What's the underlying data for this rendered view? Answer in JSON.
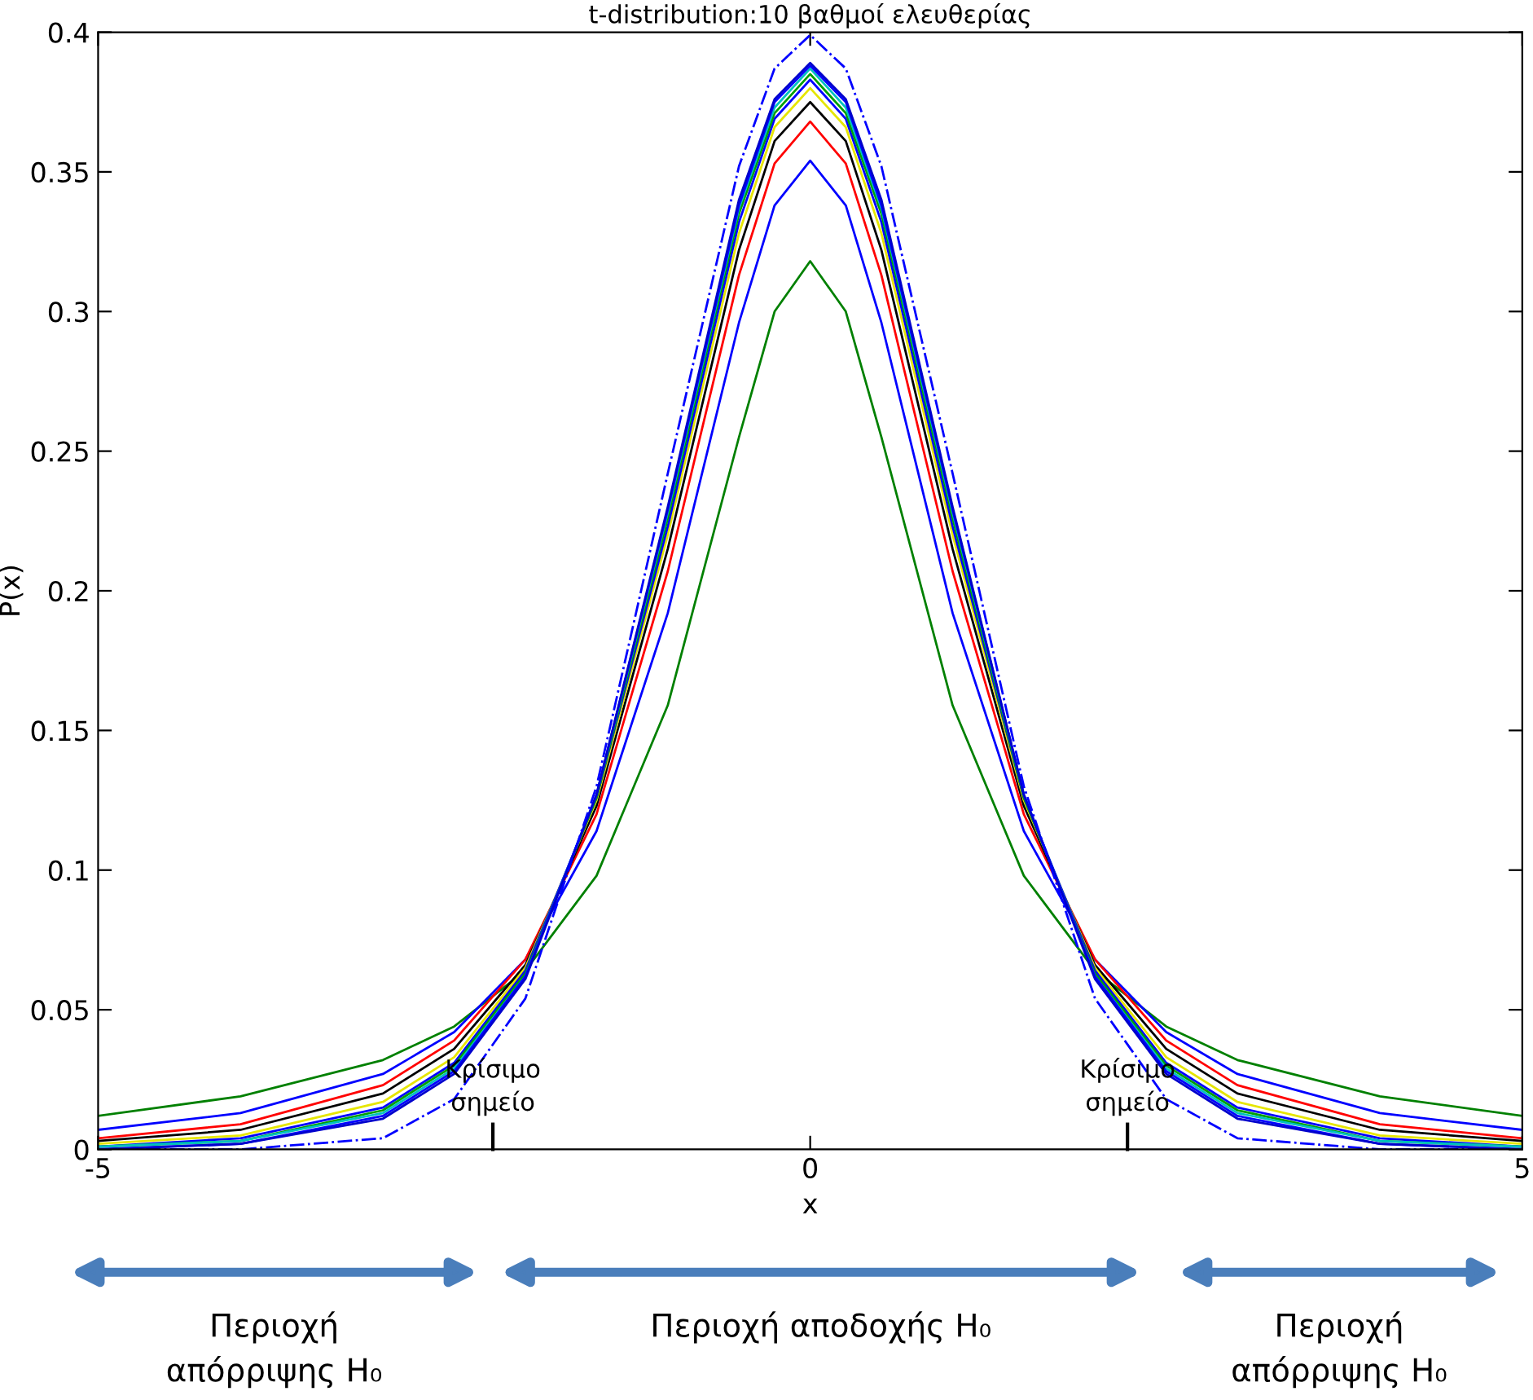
{
  "chart_data": {
    "type": "line",
    "title": "t-distribution:10 βαθμοί ελευθερίας",
    "xlabel": "x",
    "ylabel": "P(x)",
    "x": [
      -5,
      -4,
      -3,
      -2.5,
      -2,
      -1.5,
      -1,
      -0.5,
      -0.25,
      0,
      0.25,
      0.5,
      1,
      1.5,
      2,
      2.5,
      3,
      4,
      5
    ],
    "series": [
      {
        "color": "#008000",
        "values": [
          0.012,
          0.019,
          0.032,
          0.044,
          0.064,
          0.098,
          0.159,
          0.255,
          0.3,
          0.318,
          0.3,
          0.255,
          0.159,
          0.098,
          0.064,
          0.044,
          0.032,
          0.019,
          0.012
        ]
      },
      {
        "color": "#0000ff",
        "values": [
          0.007,
          0.013,
          0.027,
          0.042,
          0.068,
          0.114,
          0.192,
          0.296,
          0.338,
          0.354,
          0.338,
          0.296,
          0.192,
          0.114,
          0.068,
          0.042,
          0.027,
          0.013,
          0.007
        ]
      },
      {
        "color": "#ff0000",
        "values": [
          0.004,
          0.009,
          0.023,
          0.039,
          0.068,
          0.12,
          0.207,
          0.313,
          0.353,
          0.368,
          0.353,
          0.313,
          0.207,
          0.12,
          0.068,
          0.039,
          0.023,
          0.009,
          0.004
        ]
      },
      {
        "color": "#000000",
        "values": [
          0.003,
          0.007,
          0.02,
          0.036,
          0.066,
          0.123,
          0.215,
          0.322,
          0.361,
          0.375,
          0.361,
          0.322,
          0.215,
          0.123,
          0.066,
          0.036,
          0.02,
          0.007,
          0.003
        ]
      },
      {
        "color": "#e6e600",
        "values": [
          0.002,
          0.005,
          0.017,
          0.033,
          0.065,
          0.125,
          0.22,
          0.328,
          0.366,
          0.38,
          0.366,
          0.328,
          0.22,
          0.125,
          0.065,
          0.033,
          0.017,
          0.005,
          0.002
        ]
      },
      {
        "color": "#0000ff",
        "values": [
          0.001,
          0.004,
          0.015,
          0.031,
          0.064,
          0.126,
          0.223,
          0.332,
          0.369,
          0.383,
          0.369,
          0.332,
          0.223,
          0.126,
          0.064,
          0.031,
          0.015,
          0.004,
          0.001
        ]
      },
      {
        "color": "#00a000",
        "values": [
          0.001,
          0.003,
          0.014,
          0.03,
          0.063,
          0.126,
          0.226,
          0.335,
          0.371,
          0.385,
          0.371,
          0.335,
          0.226,
          0.126,
          0.063,
          0.03,
          0.014,
          0.003,
          0.001
        ]
      },
      {
        "color": "#00c0c0",
        "values": [
          0.001,
          0.003,
          0.013,
          0.029,
          0.062,
          0.127,
          0.228,
          0.337,
          0.373,
          0.387,
          0.373,
          0.337,
          0.228,
          0.127,
          0.062,
          0.029,
          0.013,
          0.003,
          0.001
        ]
      },
      {
        "color": "#0000ff",
        "values": [
          0.0,
          0.002,
          0.012,
          0.028,
          0.062,
          0.127,
          0.229,
          0.338,
          0.375,
          0.388,
          0.375,
          0.338,
          0.229,
          0.127,
          0.062,
          0.028,
          0.012,
          0.002,
          0.0
        ]
      },
      {
        "color": "#0000cc",
        "values": [
          0.0,
          0.002,
          0.011,
          0.027,
          0.061,
          0.127,
          0.23,
          0.34,
          0.376,
          0.389,
          0.376,
          0.34,
          0.23,
          0.127,
          0.061,
          0.027,
          0.011,
          0.002,
          0.0
        ]
      },
      {
        "color": "#0000ff",
        "line_style": "dashdot",
        "values": [
          0.0,
          0.0,
          0.004,
          0.018,
          0.054,
          0.13,
          0.242,
          0.352,
          0.387,
          0.399,
          0.387,
          0.352,
          0.242,
          0.13,
          0.054,
          0.018,
          0.004,
          0.0,
          0.0
        ]
      }
    ],
    "xlim": [
      -5,
      5
    ],
    "xticks": [
      -5,
      0,
      5
    ],
    "ylim": [
      0,
      0.4
    ],
    "yticks": [
      0,
      0.05,
      0.1,
      0.15,
      0.2,
      0.25,
      0.3,
      0.35,
      0.4
    ],
    "grid": false,
    "legend": false,
    "marker": "none",
    "line_style": "solid",
    "ref_lines": [
      {
        "axis": "x",
        "value": -2.228,
        "label": "Κρίσιμο\nσημείο",
        "color": "#000000"
      },
      {
        "axis": "x",
        "value": 2.228,
        "label": "Κρίσιμο\nσημείο",
        "color": "#000000"
      }
    ],
    "annotations": [
      "Περιοχή\nαπόρριψης H₀",
      "Περιοχή αποδοχής H₀",
      "Περιοχή\nαπόρριψης H₀"
    ]
  }
}
